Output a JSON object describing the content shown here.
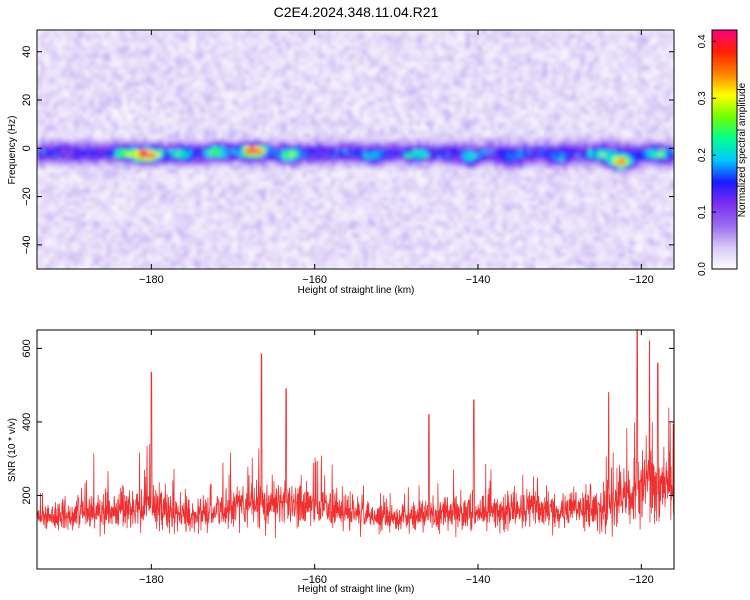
{
  "title": "C2E4.2024.348.11.04.R21",
  "chart_data": [
    {
      "type": "heatmap",
      "xlabel": "Height of straight line (km)",
      "ylabel": "Frequency (Hz)",
      "xlim": [
        -194,
        -116
      ],
      "ylim": [
        -50,
        49
      ],
      "x_ticks": [
        -180,
        -160,
        -140,
        -120
      ],
      "y_ticks": [
        -40,
        -20,
        0,
        20,
        40
      ],
      "colorbar": {
        "label": "Normalized spectral amplitude",
        "range": [
          0.0,
          0.42
        ],
        "ticks": [
          0.0,
          0.1,
          0.2,
          0.3,
          0.4
        ],
        "stops": [
          "#ffffff",
          "#d7c8f5",
          "#9a6cf0",
          "#7b2ff0",
          "#1a1aff",
          "#00c8ff",
          "#00ff90",
          "#70ff00",
          "#ffff00",
          "#ff8000",
          "#ff2000",
          "#ff0080"
        ]
      },
      "band_center_hz": -2,
      "hotspots": [
        {
          "x": -180.5,
          "y": -3,
          "amp": 0.4
        },
        {
          "x": -167.5,
          "y": -1,
          "amp": 0.4
        },
        {
          "x": -122.5,
          "y": -6,
          "amp": 0.4
        },
        {
          "x": -183.0,
          "y": -2,
          "amp": 0.22
        },
        {
          "x": -176.5,
          "y": -3,
          "amp": 0.2
        },
        {
          "x": -172.0,
          "y": -1,
          "amp": 0.22
        },
        {
          "x": -163.0,
          "y": -3,
          "amp": 0.24
        },
        {
          "x": -153.0,
          "y": -4,
          "amp": 0.18
        },
        {
          "x": -147.5,
          "y": -3,
          "amp": 0.18
        },
        {
          "x": -141.0,
          "y": -5,
          "amp": 0.19
        },
        {
          "x": -136.0,
          "y": -6,
          "amp": 0.17
        },
        {
          "x": -130.0,
          "y": -5,
          "amp": 0.18
        },
        {
          "x": -125.0,
          "y": -3,
          "amp": 0.2
        },
        {
          "x": -118.0,
          "y": -3,
          "amp": 0.22
        }
      ]
    },
    {
      "type": "line",
      "xlabel": "Height of straight line (km)",
      "ylabel": "SNR (10 * v/v)",
      "xlim": [
        -194,
        -116
      ],
      "ylim": [
        0,
        650
      ],
      "x_ticks": [
        -180,
        -160,
        -140,
        -120
      ],
      "y_ticks": [
        200,
        400,
        600
      ],
      "series_color": "#f03030",
      "baseline_profile": [
        {
          "x": -194,
          "mean": 140,
          "spread": 70
        },
        {
          "x": -180,
          "mean": 170,
          "spread": 110
        },
        {
          "x": -175,
          "mean": 140,
          "spread": 80
        },
        {
          "x": -167,
          "mean": 180,
          "spread": 140
        },
        {
          "x": -160,
          "mean": 170,
          "spread": 110
        },
        {
          "x": -152,
          "mean": 140,
          "spread": 75
        },
        {
          "x": -145,
          "mean": 150,
          "spread": 85
        },
        {
          "x": -138,
          "mean": 160,
          "spread": 95
        },
        {
          "x": -130,
          "mean": 160,
          "spread": 100
        },
        {
          "x": -124,
          "mean": 165,
          "spread": 120
        },
        {
          "x": -120,
          "mean": 230,
          "spread": 200
        },
        {
          "x": -116,
          "mean": 220,
          "spread": 170
        }
      ],
      "peaks": [
        {
          "x": -180.0,
          "y": 535
        },
        {
          "x": -166.5,
          "y": 585
        },
        {
          "x": -163.5,
          "y": 490
        },
        {
          "x": -146.0,
          "y": 420
        },
        {
          "x": -140.5,
          "y": 460
        },
        {
          "x": -124.0,
          "y": 480
        },
        {
          "x": -120.5,
          "y": 650
        },
        {
          "x": -119.0,
          "y": 620
        },
        {
          "x": -118.0,
          "y": 560
        }
      ]
    }
  ]
}
